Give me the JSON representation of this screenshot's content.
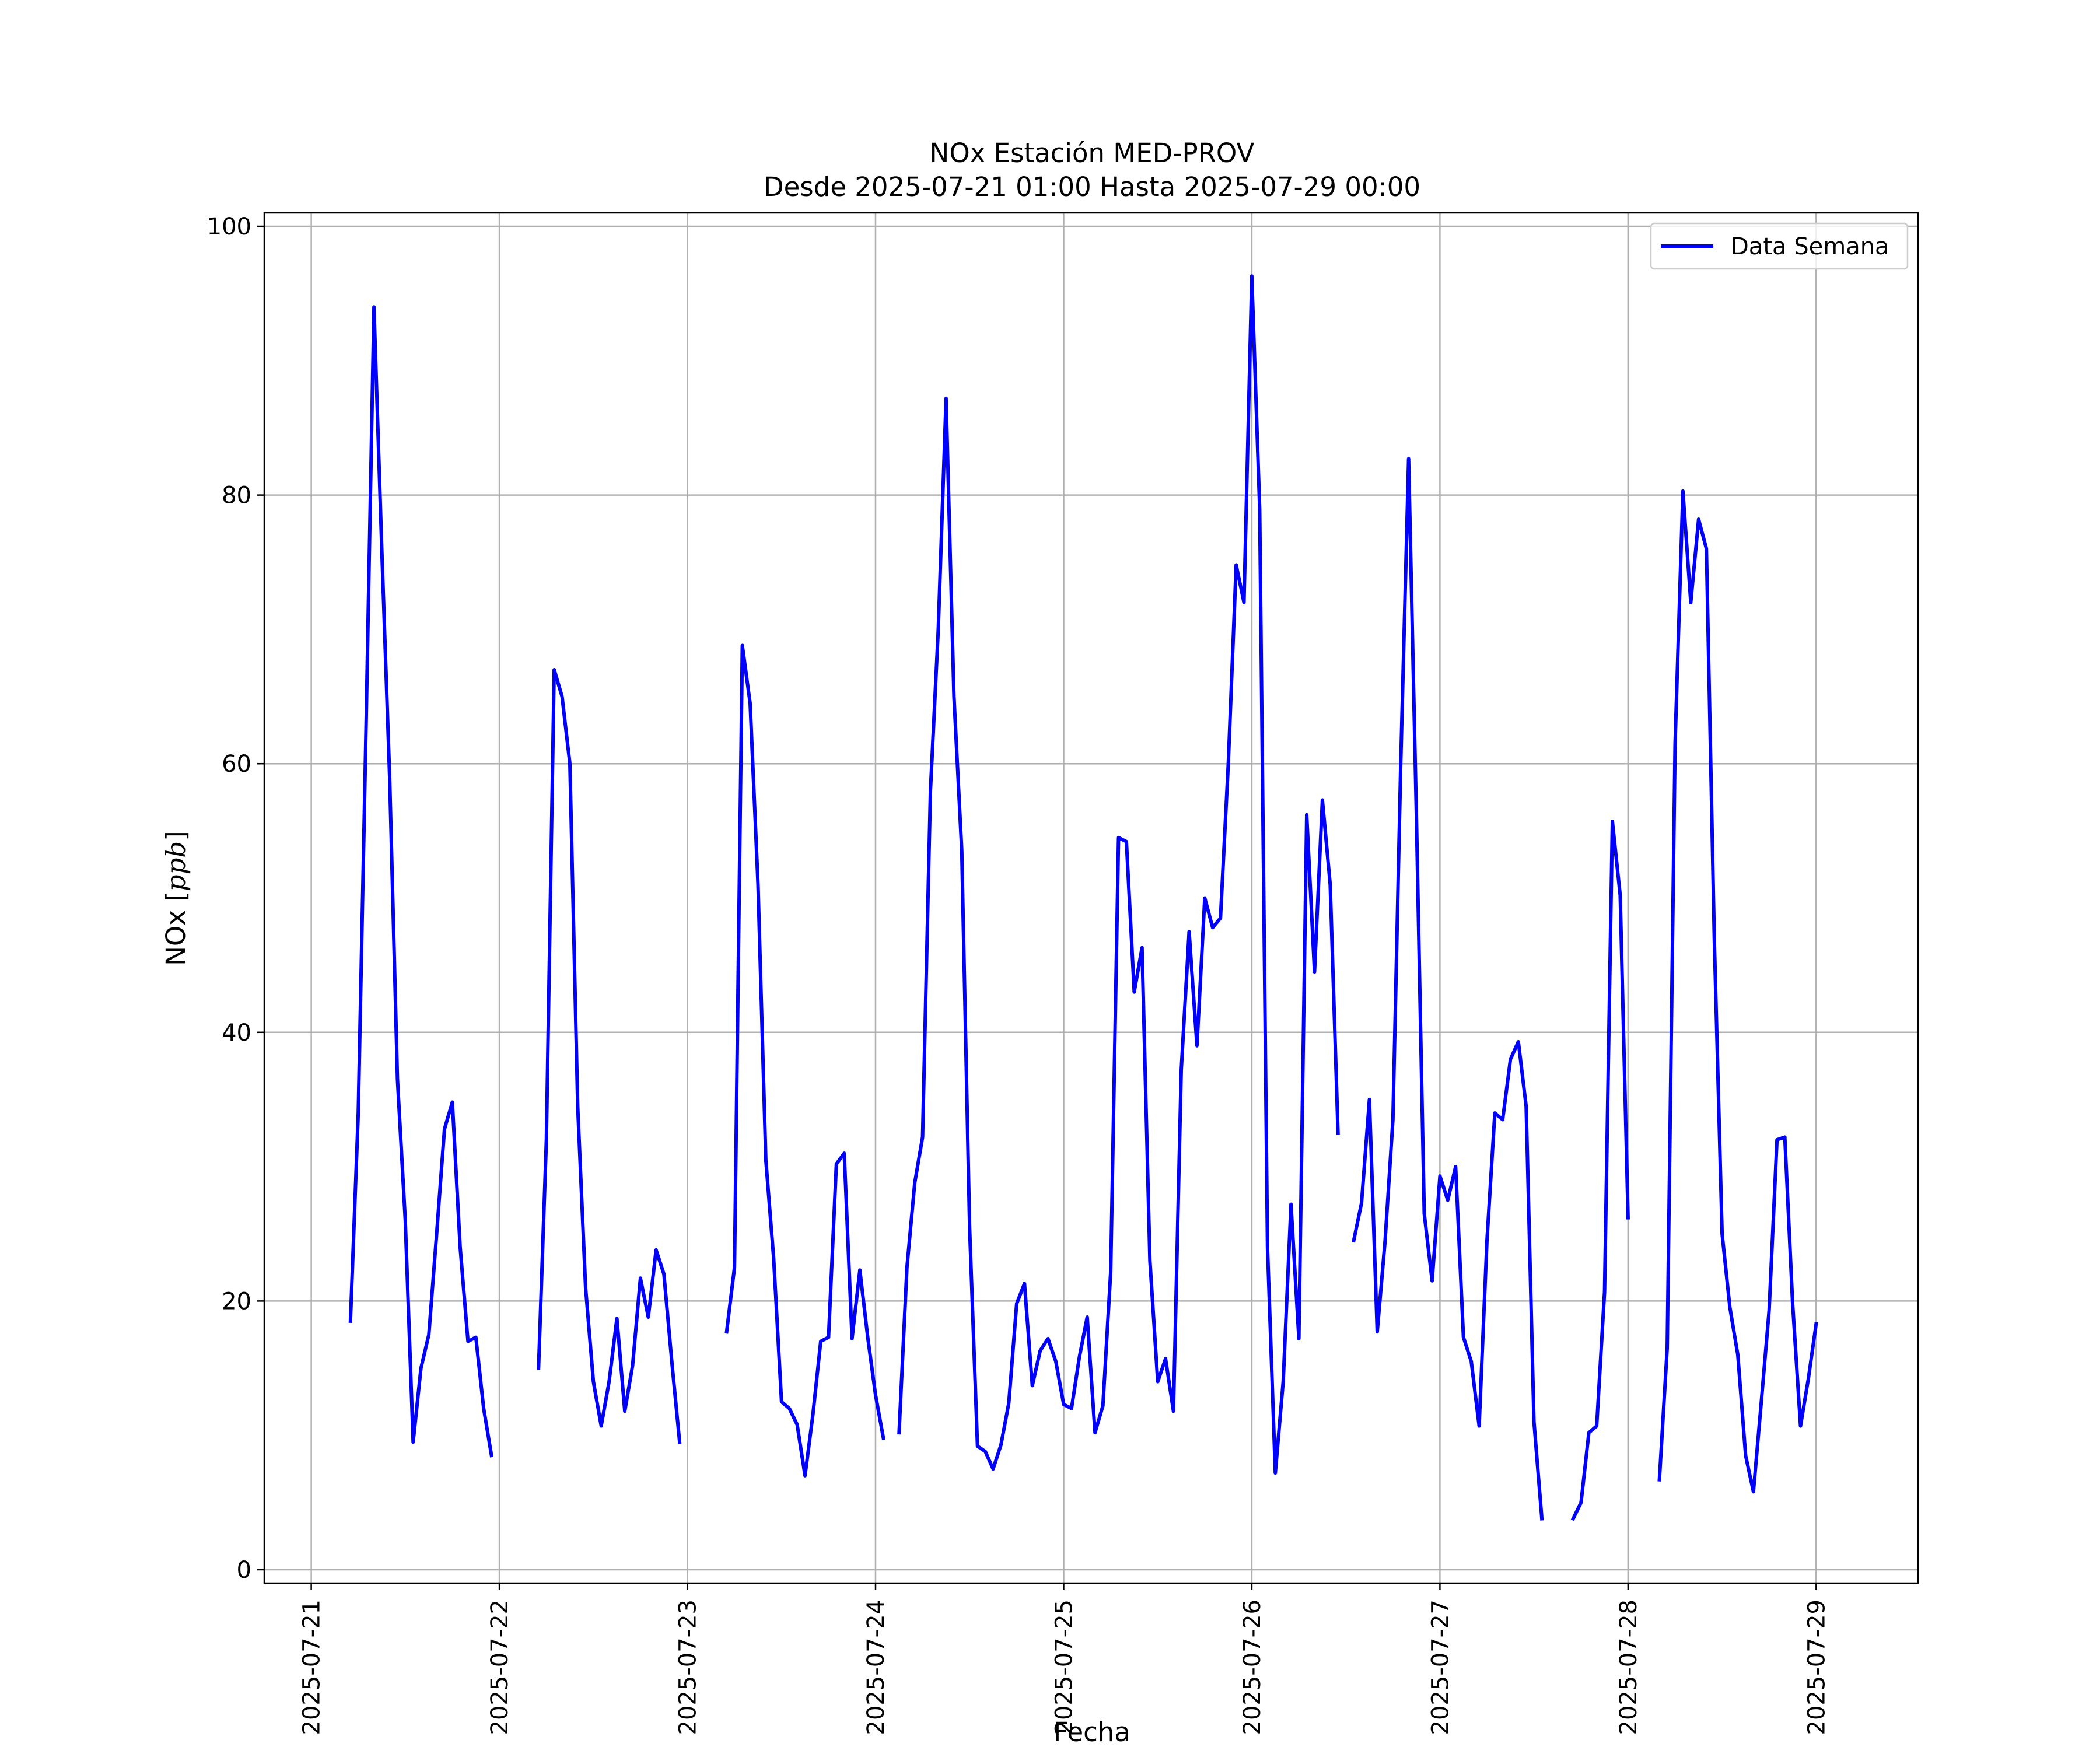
{
  "chart_data": {
    "type": "line",
    "title": "NOx Estación MED-PROV",
    "subtitle": "Desde 2025-07-21 01:00 Hasta 2025-07-29 00:00",
    "xlabel": "Fecha",
    "ylabel": "NOx [ppb]",
    "ylabel_plain": "NOx [",
    "ylabel_italic": "ppb",
    "ylabel_close": "]",
    "xlim": [
      "2025-07-20 18:00",
      "2025-07-29 13:00"
    ],
    "ylim": [
      -1,
      101
    ],
    "yticks": [
      0,
      20,
      40,
      60,
      80,
      100
    ],
    "xticks": [
      "2025-07-21",
      "2025-07-22",
      "2025-07-23",
      "2025-07-24",
      "2025-07-25",
      "2025-07-26",
      "2025-07-27",
      "2025-07-28",
      "2025-07-29"
    ],
    "grid": true,
    "legend_position": "top-right",
    "series": [
      {
        "name": "Data Semana",
        "color": "#0000ff",
        "segments": [
          [
            [
              "2025-07-21 05:00",
              18.5
            ],
            [
              "2025-07-21 06:00",
              34
            ],
            [
              "2025-07-21 07:00",
              63
            ],
            [
              "2025-07-21 08:00",
              94
            ],
            [
              "2025-07-21 09:00",
              76
            ],
            [
              "2025-07-21 10:00",
              59
            ],
            [
              "2025-07-21 11:00",
              36.5
            ],
            [
              "2025-07-21 12:00",
              26
            ],
            [
              "2025-07-21 13:00",
              9.5
            ],
            [
              "2025-07-21 14:00",
              15
            ],
            [
              "2025-07-21 15:00",
              17.5
            ],
            [
              "2025-07-21 16:00",
              25
            ],
            [
              "2025-07-21 17:00",
              32.8
            ],
            [
              "2025-07-21 18:00",
              34.8
            ],
            [
              "2025-07-21 19:00",
              24
            ],
            [
              "2025-07-21 20:00",
              17
            ],
            [
              "2025-07-21 21:00",
              17.3
            ],
            [
              "2025-07-21 22:00",
              12
            ],
            [
              "2025-07-21 23:00",
              8.5
            ]
          ],
          [
            [
              "2025-07-22 05:00",
              15
            ],
            [
              "2025-07-22 06:00",
              32
            ],
            [
              "2025-07-22 07:00",
              67
            ],
            [
              "2025-07-22 08:00",
              65
            ],
            [
              "2025-07-22 09:00",
              60
            ],
            [
              "2025-07-22 10:00",
              34.5
            ],
            [
              "2025-07-22 11:00",
              21
            ],
            [
              "2025-07-22 12:00",
              14
            ],
            [
              "2025-07-22 13:00",
              10.7
            ],
            [
              "2025-07-22 14:00",
              14
            ],
            [
              "2025-07-22 15:00",
              18.7
            ],
            [
              "2025-07-22 16:00",
              11.8
            ],
            [
              "2025-07-22 17:00",
              15.2
            ],
            [
              "2025-07-22 18:00",
              21.7
            ],
            [
              "2025-07-22 19:00",
              18.8
            ],
            [
              "2025-07-22 20:00",
              23.8
            ],
            [
              "2025-07-22 21:00",
              22
            ],
            [
              "2025-07-22 22:00",
              15.5
            ],
            [
              "2025-07-22 23:00",
              9.5
            ]
          ],
          [
            [
              "2025-07-23 05:00",
              17.7
            ],
            [
              "2025-07-23 06:00",
              22.5
            ],
            [
              "2025-07-23 07:00",
              68.8
            ],
            [
              "2025-07-23 08:00",
              64.5
            ],
            [
              "2025-07-23 09:00",
              51
            ],
            [
              "2025-07-23 10:00",
              30.5
            ],
            [
              "2025-07-23 11:00",
              23.2
            ],
            [
              "2025-07-23 12:00",
              12.5
            ],
            [
              "2025-07-23 13:00",
              12
            ],
            [
              "2025-07-23 14:00",
              10.8
            ],
            [
              "2025-07-23 15:00",
              7
            ],
            [
              "2025-07-23 16:00",
              11.5
            ],
            [
              "2025-07-23 17:00",
              17
            ],
            [
              "2025-07-23 18:00",
              17.3
            ],
            [
              "2025-07-23 19:00",
              30.2
            ],
            [
              "2025-07-23 20:00",
              31
            ],
            [
              "2025-07-23 21:00",
              17.2
            ],
            [
              "2025-07-23 22:00",
              22.3
            ],
            [
              "2025-07-23 23:00",
              17.3
            ],
            [
              "2025-07-24 00:00",
              13
            ],
            [
              "2025-07-24 01:00",
              9.8
            ]
          ],
          [
            [
              "2025-07-24 03:00",
              10.2
            ],
            [
              "2025-07-24 04:00",
              22.5
            ],
            [
              "2025-07-24 05:00",
              28.8
            ],
            [
              "2025-07-24 06:00",
              32.2
            ],
            [
              "2025-07-24 07:00",
              58
            ],
            [
              "2025-07-24 08:00",
              70
            ],
            [
              "2025-07-24 09:00",
              87.2
            ],
            [
              "2025-07-24 10:00",
              65
            ],
            [
              "2025-07-24 11:00",
              53.5
            ],
            [
              "2025-07-24 12:00",
              25.5
            ],
            [
              "2025-07-24 13:00",
              9.2
            ],
            [
              "2025-07-24 14:00",
              8.8
            ],
            [
              "2025-07-24 15:00",
              7.5
            ],
            [
              "2025-07-24 16:00",
              9.3
            ],
            [
              "2025-07-24 17:00",
              12.4
            ],
            [
              "2025-07-24 18:00",
              19.8
            ],
            [
              "2025-07-24 19:00",
              21.3
            ],
            [
              "2025-07-24 20:00",
              13.7
            ],
            [
              "2025-07-24 21:00",
              16.3
            ],
            [
              "2025-07-24 22:00",
              17.2
            ],
            [
              "2025-07-24 23:00",
              15.5
            ],
            [
              "2025-07-25 00:00",
              12.3
            ],
            [
              "2025-07-25 01:00",
              12
            ],
            [
              "2025-07-25 02:00",
              15.8
            ],
            [
              "2025-07-25 03:00",
              18.8
            ],
            [
              "2025-07-25 04:00",
              10.2
            ],
            [
              "2025-07-25 05:00",
              12.2
            ],
            [
              "2025-07-25 06:00",
              22.2
            ],
            [
              "2025-07-25 07:00",
              54.5
            ],
            [
              "2025-07-25 08:00",
              54.2
            ],
            [
              "2025-07-25 09:00",
              43
            ],
            [
              "2025-07-25 10:00",
              46.3
            ],
            [
              "2025-07-25 11:00",
              23
            ],
            [
              "2025-07-25 12:00",
              14
            ],
            [
              "2025-07-25 13:00",
              15.7
            ],
            [
              "2025-07-25 14:00",
              11.8
            ],
            [
              "2025-07-25 15:00",
              37.2
            ],
            [
              "2025-07-25 16:00",
              47.5
            ],
            [
              "2025-07-25 17:00",
              39
            ],
            [
              "2025-07-25 18:00",
              50
            ],
            [
              "2025-07-25 19:00",
              47.8
            ],
            [
              "2025-07-25 20:00",
              48.5
            ],
            [
              "2025-07-25 21:00",
              60
            ],
            [
              "2025-07-25 22:00",
              74.8
            ],
            [
              "2025-07-25 23:00",
              72
            ],
            [
              "2025-07-26 00:00",
              96.3
            ],
            [
              "2025-07-26 01:00",
              79
            ],
            [
              "2025-07-26 02:00",
              24
            ],
            [
              "2025-07-26 03:00",
              7.2
            ],
            [
              "2025-07-26 04:00",
              14
            ],
            [
              "2025-07-26 05:00",
              27.2
            ],
            [
              "2025-07-26 06:00",
              17.2
            ],
            [
              "2025-07-26 07:00",
              56.2
            ],
            [
              "2025-07-26 08:00",
              44.5
            ],
            [
              "2025-07-26 09:00",
              57.3
            ],
            [
              "2025-07-26 10:00",
              51
            ],
            [
              "2025-07-26 11:00",
              32.5
            ]
          ],
          [
            [
              "2025-07-26 13:00",
              24.5
            ],
            [
              "2025-07-26 14:00",
              27.3
            ],
            [
              "2025-07-26 15:00",
              35
            ],
            [
              "2025-07-26 16:00",
              17.7
            ],
            [
              "2025-07-26 17:00",
              24.5
            ],
            [
              "2025-07-26 18:00",
              33.5
            ],
            [
              "2025-07-26 19:00",
              60
            ],
            [
              "2025-07-26 20:00",
              82.7
            ],
            [
              "2025-07-26 21:00",
              56
            ],
            [
              "2025-07-26 22:00",
              26.5
            ],
            [
              "2025-07-26 23:00",
              21.5
            ],
            [
              "2025-07-27 00:00",
              29.3
            ],
            [
              "2025-07-27 01:00",
              27.5
            ],
            [
              "2025-07-27 02:00",
              30
            ],
            [
              "2025-07-27 03:00",
              17.3
            ],
            [
              "2025-07-27 04:00",
              15.5
            ],
            [
              "2025-07-27 05:00",
              10.7
            ],
            [
              "2025-07-27 06:00",
              24.5
            ],
            [
              "2025-07-27 07:00",
              34
            ],
            [
              "2025-07-27 08:00",
              33.5
            ],
            [
              "2025-07-27 09:00",
              38
            ],
            [
              "2025-07-27 10:00",
              39.3
            ],
            [
              "2025-07-27 11:00",
              34.5
            ],
            [
              "2025-07-27 12:00",
              11
            ],
            [
              "2025-07-27 13:00",
              3.8
            ]
          ],
          [
            [
              "2025-07-27 17:00",
              3.8
            ],
            [
              "2025-07-27 18:00",
              5
            ],
            [
              "2025-07-27 19:00",
              10.2
            ],
            [
              "2025-07-27 20:00",
              10.7
            ],
            [
              "2025-07-27 21:00",
              20.7
            ],
            [
              "2025-07-27 22:00",
              55.7
            ],
            [
              "2025-07-27 23:00",
              50.2
            ],
            [
              "2025-07-28 00:00",
              26.2
            ]
          ],
          [
            [
              "2025-07-28 04:00",
              6.7
            ],
            [
              "2025-07-28 05:00",
              16.5
            ],
            [
              "2025-07-28 06:00",
              61.5
            ],
            [
              "2025-07-28 07:00",
              80.3
            ],
            [
              "2025-07-28 08:00",
              72
            ],
            [
              "2025-07-28 09:00",
              78.2
            ],
            [
              "2025-07-28 10:00",
              76
            ],
            [
              "2025-07-28 11:00",
              47
            ],
            [
              "2025-07-28 12:00",
              25
            ],
            [
              "2025-07-28 13:00",
              19.5
            ],
            [
              "2025-07-28 14:00",
              16
            ],
            [
              "2025-07-28 15:00",
              8.5
            ],
            [
              "2025-07-28 16:00",
              5.8
            ],
            [
              "2025-07-28 17:00",
              12.5
            ],
            [
              "2025-07-28 18:00",
              19.3
            ],
            [
              "2025-07-28 19:00",
              32
            ],
            [
              "2025-07-28 20:00",
              32.2
            ],
            [
              "2025-07-28 21:00",
              19.8
            ],
            [
              "2025-07-28 22:00",
              10.7
            ],
            [
              "2025-07-28 23:00",
              14.2
            ],
            [
              "2025-07-29 00:00",
              18.3
            ]
          ]
        ]
      }
    ]
  }
}
